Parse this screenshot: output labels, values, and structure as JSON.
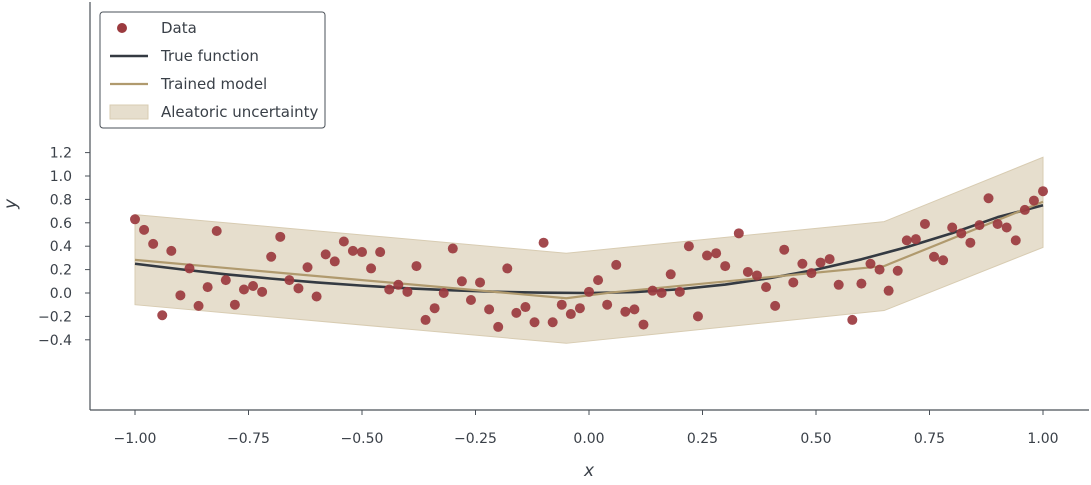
{
  "chart_data": {
    "type": "scatter",
    "title": "",
    "xlabel": "x",
    "ylabel": "y",
    "xlim": [
      -1.1,
      1.1
    ],
    "ylim": [
      -0.5,
      1.23
    ],
    "grid": false,
    "legend_position": "top-left",
    "x_ticks": [
      "-1.00",
      "-0.75",
      "-0.50",
      "-0.25",
      "0.00",
      "0.25",
      "0.50",
      "0.75",
      "1.00"
    ],
    "y_ticks": [
      "-0.4",
      "-0.2",
      "0.0",
      "0.2",
      "0.4",
      "0.6",
      "0.8",
      "1.0",
      "1.2"
    ],
    "colors": {
      "data": "#9b3a3f",
      "true_function": "#343a42",
      "trained_model": "#b09a6e",
      "uncertainty": "#d8ccb2",
      "axis": "#4a5058"
    },
    "legend": [
      {
        "kind": "marker",
        "label": "Data"
      },
      {
        "kind": "line-dark",
        "label": "True function"
      },
      {
        "kind": "line-tan",
        "label": "Trained model"
      },
      {
        "kind": "band",
        "label": "Aleatoric uncertainty"
      }
    ],
    "series": [
      {
        "name": "Data",
        "kind": "scatter",
        "points": [
          [
            -1.0,
            0.63
          ],
          [
            -0.98,
            0.54
          ],
          [
            -0.96,
            0.42
          ],
          [
            -0.94,
            -0.19
          ],
          [
            -0.92,
            0.36
          ],
          [
            -0.9,
            -0.02
          ],
          [
            -0.88,
            0.21
          ],
          [
            -0.86,
            -0.11
          ],
          [
            -0.84,
            0.05
          ],
          [
            -0.82,
            0.53
          ],
          [
            -0.8,
            0.11
          ],
          [
            -0.78,
            -0.1
          ],
          [
            -0.76,
            0.03
          ],
          [
            -0.74,
            0.06
          ],
          [
            -0.72,
            0.01
          ],
          [
            -0.7,
            0.31
          ],
          [
            -0.68,
            0.48
          ],
          [
            -0.66,
            0.11
          ],
          [
            -0.64,
            0.04
          ],
          [
            -0.62,
            0.22
          ],
          [
            -0.6,
            -0.03
          ],
          [
            -0.58,
            0.33
          ],
          [
            -0.56,
            0.27
          ],
          [
            -0.54,
            0.44
          ],
          [
            -0.52,
            0.36
          ],
          [
            -0.5,
            0.35
          ],
          [
            -0.48,
            0.21
          ],
          [
            -0.46,
            0.35
          ],
          [
            -0.44,
            0.03
          ],
          [
            -0.42,
            0.07
          ],
          [
            -0.4,
            0.01
          ],
          [
            -0.38,
            0.23
          ],
          [
            -0.36,
            -0.23
          ],
          [
            -0.34,
            -0.13
          ],
          [
            -0.32,
            -0.0
          ],
          [
            -0.3,
            0.38
          ],
          [
            -0.28,
            0.1
          ],
          [
            -0.26,
            -0.06
          ],
          [
            -0.24,
            0.09
          ],
          [
            -0.22,
            -0.14
          ],
          [
            -0.2,
            -0.29
          ],
          [
            -0.18,
            0.21
          ],
          [
            -0.16,
            -0.17
          ],
          [
            -0.14,
            -0.12
          ],
          [
            -0.12,
            -0.25
          ],
          [
            -0.1,
            0.43
          ],
          [
            -0.08,
            -0.25
          ],
          [
            -0.06,
            -0.1
          ],
          [
            -0.04,
            -0.18
          ],
          [
            -0.02,
            -0.13
          ],
          [
            0.0,
            0.01
          ],
          [
            0.02,
            0.11
          ],
          [
            0.04,
            -0.1
          ],
          [
            0.06,
            0.24
          ],
          [
            0.08,
            -0.16
          ],
          [
            0.1,
            -0.14
          ],
          [
            0.12,
            -0.27
          ],
          [
            0.14,
            0.02
          ],
          [
            0.16,
            0.0
          ],
          [
            0.18,
            0.16
          ],
          [
            0.2,
            0.01
          ],
          [
            0.22,
            0.4
          ],
          [
            0.24,
            -0.2
          ],
          [
            0.26,
            0.32
          ],
          [
            0.28,
            0.34
          ],
          [
            0.3,
            0.23
          ],
          [
            0.33,
            0.51
          ],
          [
            0.35,
            0.18
          ],
          [
            0.37,
            0.15
          ],
          [
            0.39,
            0.05
          ],
          [
            0.41,
            -0.11
          ],
          [
            0.43,
            0.37
          ],
          [
            0.45,
            0.09
          ],
          [
            0.47,
            0.25
          ],
          [
            0.49,
            0.17
          ],
          [
            0.51,
            0.26
          ],
          [
            0.53,
            0.29
          ],
          [
            0.55,
            0.07
          ],
          [
            0.58,
            -0.23
          ],
          [
            0.6,
            0.08
          ],
          [
            0.62,
            0.25
          ],
          [
            0.64,
            0.2
          ],
          [
            0.66,
            0.02
          ],
          [
            0.68,
            0.19
          ],
          [
            0.7,
            0.45
          ],
          [
            0.72,
            0.46
          ],
          [
            0.74,
            0.59
          ],
          [
            0.76,
            0.31
          ],
          [
            0.78,
            0.28
          ],
          [
            0.8,
            0.56
          ],
          [
            0.82,
            0.51
          ],
          [
            0.84,
            0.43
          ],
          [
            0.86,
            0.58
          ],
          [
            0.88,
            0.81
          ],
          [
            0.9,
            0.59
          ],
          [
            0.92,
            0.56
          ],
          [
            0.94,
            0.45
          ],
          [
            0.96,
            0.71
          ],
          [
            0.98,
            0.79
          ],
          [
            1.0,
            0.87
          ]
        ]
      },
      {
        "name": "True function",
        "kind": "line",
        "points": [
          [
            -1.0,
            0.25
          ],
          [
            -0.9,
            0.203
          ],
          [
            -0.8,
            0.16
          ],
          [
            -0.7,
            0.123
          ],
          [
            -0.6,
            0.09
          ],
          [
            -0.5,
            0.063
          ],
          [
            -0.4,
            0.04
          ],
          [
            -0.3,
            0.023
          ],
          [
            -0.2,
            0.01
          ],
          [
            -0.1,
            0.003
          ],
          [
            0.0,
            0.0
          ],
          [
            0.1,
            0.008
          ],
          [
            0.2,
            0.032
          ],
          [
            0.3,
            0.072
          ],
          [
            0.4,
            0.128
          ],
          [
            0.5,
            0.2
          ],
          [
            0.6,
            0.288
          ],
          [
            0.7,
            0.392
          ],
          [
            0.8,
            0.512
          ],
          [
            0.9,
            0.648
          ],
          [
            1.0,
            0.75
          ]
        ]
      },
      {
        "name": "Trained model",
        "kind": "line",
        "points": [
          [
            -1.0,
            0.283
          ],
          [
            -0.05,
            -0.045
          ],
          [
            0.05,
            0.005
          ],
          [
            0.65,
            0.23
          ],
          [
            1.0,
            0.78
          ]
        ]
      },
      {
        "name": "Aleatoric uncertainty",
        "kind": "band",
        "upper": [
          [
            -1.0,
            0.67
          ],
          [
            -0.05,
            0.34
          ],
          [
            0.65,
            0.61
          ],
          [
            1.0,
            1.16
          ]
        ],
        "lower": [
          [
            -1.0,
            -0.1
          ],
          [
            -0.05,
            -0.43
          ],
          [
            0.65,
            -0.15
          ],
          [
            1.0,
            0.39
          ]
        ]
      }
    ]
  }
}
